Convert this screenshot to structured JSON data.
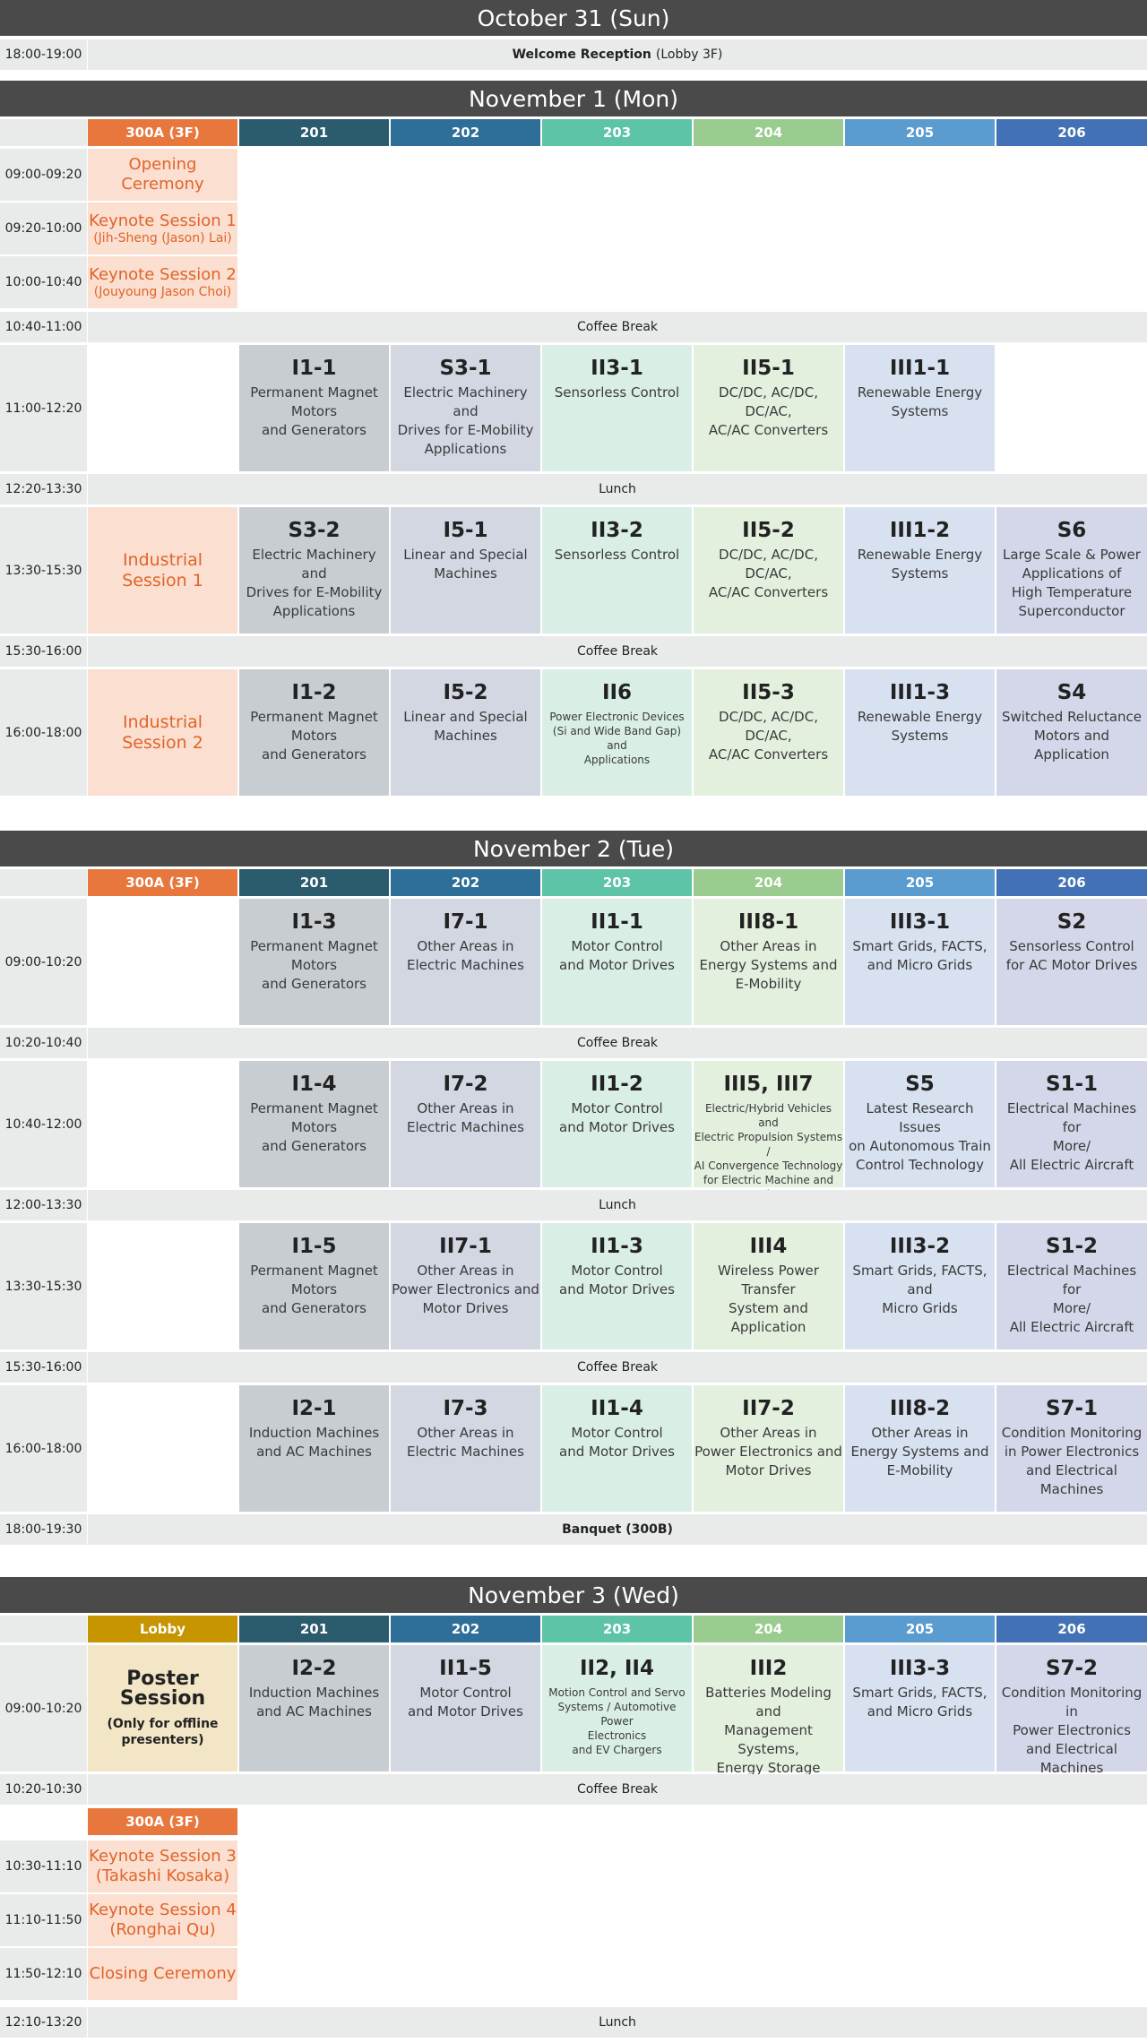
{
  "days": {
    "oct31": "October 31 (Sun)",
    "nov1": "November 1 (Mon)",
    "nov2": "November 2 (Tue)",
    "nov3": "November 3 (Wed)"
  },
  "rooms": {
    "r300a": "300A (3F)",
    "r201": "201",
    "r202": "202",
    "r203": "203",
    "r204": "204",
    "r205": "205",
    "r206": "206",
    "lobby": "Lobby"
  },
  "colors": {
    "day_bar": "#4a4a4a",
    "keynote_text": "#e0642a",
    "keynote_bg": "#fbdfd0",
    "room_300a": "#e8773d",
    "room_201": "#2b5c6e",
    "room_202": "#2e6f99",
    "room_203": "#5ec4a8",
    "room_204": "#9acb8f",
    "room_205": "#5a9bd0",
    "room_206": "#4271b6",
    "room_lobby": "#c69500"
  },
  "oct31": {
    "time": "18:00-19:00",
    "event_bold": "Welcome Reception",
    "event_rest": "(Lobby 3F)"
  },
  "nov1": {
    "times": [
      "09:00-09:20",
      "09:20-10:00",
      "10:00-10:40",
      "10:40-11:00",
      "11:00-12:20",
      "12:20-13:30",
      "13:30-15:30",
      "15:30-16:00",
      "16:00-18:00"
    ],
    "opening": "Opening Ceremony",
    "keynote1": "Keynote Session 1",
    "keynote1_speaker": "(Jih-Sheng (Jason) Lai)",
    "keynote2": "Keynote Session 2",
    "keynote2_speaker": "(Jouyoung Jason Choi)",
    "coffee1": "Coffee Break",
    "lunch": "Lunch",
    "coffee2": "Coffee Break",
    "industrial1": "Industrial\nSession 1",
    "industrial2": "Industrial\nSession 2",
    "s1100": [
      {
        "code": "I1-1",
        "desc": "Permanent Magnet\nMotors\nand Generators"
      },
      {
        "code": "S3-1",
        "desc": "Electric Machinery and\nDrives for E-Mobility\nApplications"
      },
      {
        "code": "II3-1",
        "desc": "Sensorless Control"
      },
      {
        "code": "II5-1",
        "desc": "DC/DC, AC/DC, DC/AC,\nAC/AC Converters"
      },
      {
        "code": "III1-1",
        "desc": "Renewable Energy\nSystems"
      }
    ],
    "s1330": [
      {
        "code": "S3-2",
        "desc": "Electric Machinery and\nDrives for E-Mobility\nApplications"
      },
      {
        "code": "I5-1",
        "desc": "Linear and Special\nMachines"
      },
      {
        "code": "II3-2",
        "desc": "Sensorless Control"
      },
      {
        "code": "II5-2",
        "desc": "DC/DC, AC/DC, DC/AC,\nAC/AC Converters"
      },
      {
        "code": "III1-2",
        "desc": "Renewable Energy\nSystems"
      },
      {
        "code": "S6",
        "desc": "Large Scale & Power\nApplications of\nHigh Temperature\nSuperconductor"
      }
    ],
    "s1600": [
      {
        "code": "I1-2",
        "desc": "Permanent Magnet\nMotors\nand Generators"
      },
      {
        "code": "I5-2",
        "desc": "Linear and Special\nMachines"
      },
      {
        "code": "II6",
        "desc": "Power Electronic Devices\n(Si and Wide Band Gap) and\nApplications"
      },
      {
        "code": "II5-3",
        "desc": "DC/DC, AC/DC, DC/AC,\nAC/AC Converters"
      },
      {
        "code": "III1-3",
        "desc": "Renewable Energy\nSystems"
      },
      {
        "code": "S4",
        "desc": "Switched Reluctance\nMotors and Application"
      }
    ]
  },
  "nov2": {
    "times": [
      "09:00-10:20",
      "10:20-10:40",
      "10:40-12:00",
      "12:00-13:30",
      "13:30-15:30",
      "15:30-16:00",
      "16:00-18:00",
      "18:00-19:30"
    ],
    "coffee1": "Coffee Break",
    "lunch": "Lunch",
    "coffee2": "Coffee Break",
    "banquet": "Banquet (300B)",
    "s0900": [
      {
        "code": "I1-3",
        "desc": "Permanent Magnet\nMotors\nand Generators"
      },
      {
        "code": "I7-1",
        "desc": "Other Areas in\nElectric Machines"
      },
      {
        "code": "II1-1",
        "desc": "Motor Control\nand Motor Drives"
      },
      {
        "code": "III8-1",
        "desc": "Other Areas in\nEnergy Systems and\nE-Mobility"
      },
      {
        "code": "III3-1",
        "desc": "Smart Grids, FACTS,\nand Micro Grids"
      },
      {
        "code": "S2",
        "desc": "Sensorless Control\nfor AC Motor Drives"
      }
    ],
    "s1040": [
      {
        "code": "I1-4",
        "desc": "Permanent Magnet\nMotors\nand Generators"
      },
      {
        "code": "I7-2",
        "desc": "Other Areas in\nElectric Machines"
      },
      {
        "code": "II1-2",
        "desc": "Motor Control\nand Motor Drives"
      },
      {
        "code": "III5, III7",
        "desc": "Electric/Hybrid Vehicles and\nElectric Propulsion Systems /\nAI Convergence Technology\nfor Electric Machine and Drive"
      },
      {
        "code": "S5",
        "desc": "Latest Research Issues\non Autonomous Train\nControl Technology"
      },
      {
        "code": "S1-1",
        "desc": "Electrical Machines for\nMore/\nAll Electric Aircraft"
      }
    ],
    "s1330": [
      {
        "code": "I1-5",
        "desc": "Permanent Magnet\nMotors\nand Generators"
      },
      {
        "code": "II7-1",
        "desc": "Other Areas in\nPower Electronics and\nMotor Drives"
      },
      {
        "code": "II1-3",
        "desc": "Motor Control\nand Motor Drives"
      },
      {
        "code": "III4",
        "desc": "Wireless Power Transfer\nSystem and Application"
      },
      {
        "code": "III3-2",
        "desc": "Smart Grids, FACTS, and\nMicro Grids"
      },
      {
        "code": "S1-2",
        "desc": "Electrical Machines for\nMore/\nAll Electric Aircraft"
      }
    ],
    "s1600": [
      {
        "code": "I2-1",
        "desc": "Induction Machines\nand AC Machines"
      },
      {
        "code": "I7-3",
        "desc": "Other Areas in\nElectric Machines"
      },
      {
        "code": "II1-4",
        "desc": "Motor Control\nand Motor Drives"
      },
      {
        "code": "II7-2",
        "desc": "Other Areas in\nPower Electronics and\nMotor Drives"
      },
      {
        "code": "III8-2",
        "desc": "Other Areas in\nEnergy Systems and\nE-Mobility"
      },
      {
        "code": "S7-1",
        "desc": "Condition Monitoring\nin Power Electronics\nand Electrical Machines"
      }
    ]
  },
  "nov3": {
    "times": [
      "09:00-10:20",
      "10:20-10:30",
      "10:30-11:10",
      "11:10-11:50",
      "11:50-12:10",
      "12:10-13:20"
    ],
    "poster_title": "Poster\nSession",
    "poster_note": "(Only for offline\npresenters)",
    "coffee": "Coffee Break",
    "keynote3": "Keynote Session 3",
    "keynote3_speaker": "(Takashi Kosaka)",
    "keynote4": "Keynote Session 4",
    "keynote4_speaker": "(Ronghai Qu)",
    "closing": "Closing Ceremony",
    "lunch": "Lunch",
    "s0900": [
      {
        "code": "I2-2",
        "desc": "Induction Machines\nand AC Machines"
      },
      {
        "code": "II1-5",
        "desc": "Motor Control\nand Motor Drives"
      },
      {
        "code": "II2, II4",
        "desc": "Motion Control and Servo\nSystems / Automotive Power\nElectronics\nand EV Chargers"
      },
      {
        "code": "III2",
        "desc": "Batteries Modeling and\nManagement Systems,\nEnergy Storage Systems"
      },
      {
        "code": "III3-3",
        "desc": "Smart Grids, FACTS,\nand Micro Grids"
      },
      {
        "code": "S7-2",
        "desc": "Condition Monitoring in\nPower Electronics\nand Electrical Machines"
      }
    ]
  }
}
